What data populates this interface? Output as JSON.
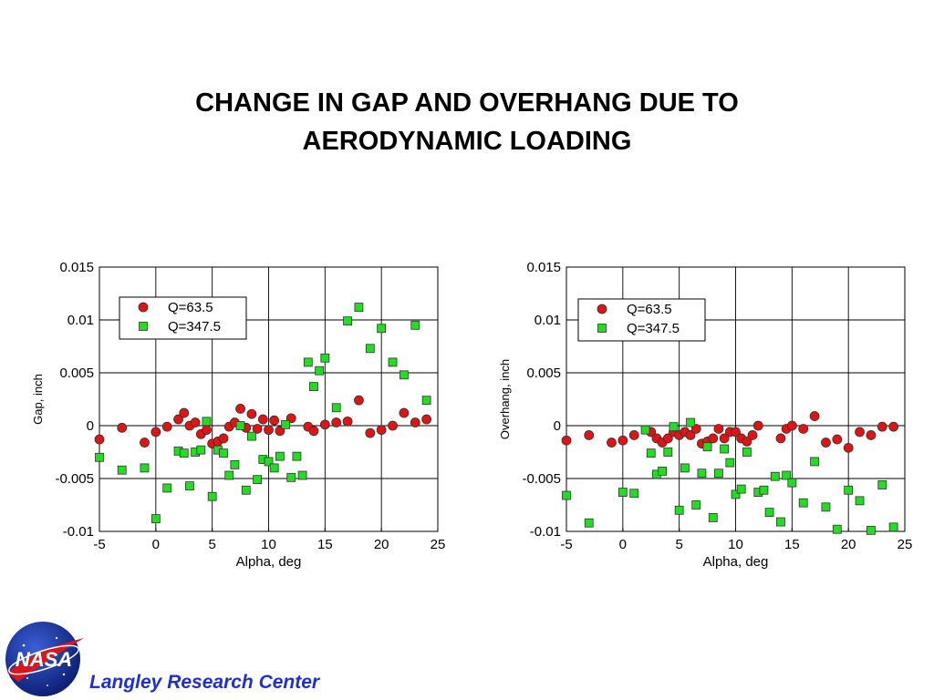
{
  "title": {
    "line1": "CHANGE IN GAP AND OVERHANG DUE TO",
    "line2": "AERODYNAMIC LOADING"
  },
  "footer": {
    "org": "Langley Research Center",
    "logo_text": "NASA"
  },
  "colors": {
    "series1": "#e01414",
    "series2": "#22dd22",
    "title": "#000000",
    "footer_text": "#1e2fd3"
  },
  "chart_data": [
    {
      "type": "scatter",
      "title": "",
      "xlabel": "Alpha, deg",
      "ylabel": "Gap, inch",
      "xlim": [
        -5,
        25
      ],
      "ylim": [
        -0.01,
        0.015
      ],
      "xticks": [
        "-5",
        "0",
        "5",
        "10",
        "15",
        "20",
        "25"
      ],
      "yticks": [
        "0.015",
        "0.01",
        "0.005",
        "0",
        "-0.005",
        "-0.01"
      ],
      "grid": true,
      "legend_position": "top-left",
      "series": [
        {
          "name": "Q=63.5",
          "marker": "circle",
          "x": [
            -5,
            -3,
            -1,
            0,
            1,
            2,
            2.5,
            3,
            3.5,
            4,
            4.5,
            5,
            5.5,
            6,
            6.5,
            7,
            7.5,
            8,
            8.5,
            9,
            9.5,
            10,
            10.5,
            11,
            12,
            13.5,
            14,
            15,
            16,
            17,
            18,
            19,
            20,
            21,
            22,
            23,
            24
          ],
          "y": [
            -0.0013,
            -0.0002,
            -0.0016,
            -0.0006,
            -0.0001,
            0.0006,
            0.0012,
            0.0,
            0.0003,
            -0.0008,
            -0.0004,
            -0.0017,
            -0.0015,
            -0.0012,
            -0.0001,
            0.0003,
            0.0016,
            -0.0002,
            0.0011,
            -0.0003,
            0.0006,
            -0.0004,
            0.0005,
            -0.0005,
            0.0007,
            -0.0001,
            -0.0005,
            0.0001,
            0.0003,
            0.0004,
            0.0024,
            -0.0007,
            -0.0004,
            0.0,
            0.0012,
            0.0003,
            0.0006
          ]
        },
        {
          "name": "Q=347.5",
          "marker": "square",
          "x": [
            -5,
            -3,
            -1,
            0,
            1,
            2,
            2.5,
            3,
            3.5,
            4,
            4.5,
            5,
            5.5,
            6,
            6.5,
            7,
            7.5,
            8,
            8.5,
            9,
            9.5,
            10,
            10.5,
            11,
            11.5,
            12,
            12.5,
            13,
            13.5,
            14,
            14.5,
            15,
            16,
            17,
            18,
            19,
            20,
            21,
            22,
            23,
            24
          ],
          "y": [
            -0.003,
            -0.0042,
            -0.004,
            -0.0088,
            -0.0059,
            -0.0024,
            -0.0026,
            -0.0057,
            -0.0025,
            -0.0023,
            0.0004,
            -0.0067,
            -0.0023,
            -0.0026,
            -0.0047,
            -0.0037,
            0.0,
            -0.0061,
            -0.001,
            -0.0051,
            -0.0032,
            -0.0034,
            -0.004,
            -0.0029,
            0.0001,
            -0.0049,
            -0.0029,
            -0.0047,
            0.006,
            0.0037,
            0.0052,
            0.0064,
            0.0017,
            0.0099,
            0.0112,
            0.0073,
            0.0092,
            0.006,
            0.0048,
            0.0095,
            0.0024
          ]
        }
      ]
    },
    {
      "type": "scatter",
      "title": "",
      "xlabel": "Alpha, deg",
      "ylabel": "Overhang, inch",
      "xlim": [
        -5,
        25
      ],
      "ylim": [
        -0.01,
        0.015
      ],
      "xticks": [
        "-5",
        "0",
        "5",
        "10",
        "15",
        "20",
        "25"
      ],
      "yticks": [
        "0.015",
        "0.01",
        "0.005",
        "0",
        "-0.005",
        "-0.01"
      ],
      "grid": true,
      "legend_position": "top-left",
      "series": [
        {
          "name": "Q=63.5",
          "marker": "circle",
          "x": [
            -5,
            -3,
            -1,
            0,
            1,
            2.5,
            3,
            3.5,
            4,
            4.5,
            5,
            5.5,
            6,
            6.5,
            7,
            7.5,
            8,
            8.5,
            9,
            9.5,
            10,
            10.5,
            11,
            11.5,
            12,
            14,
            14.5,
            15,
            16,
            17,
            18,
            19,
            20,
            21,
            22,
            23,
            24
          ],
          "y": [
            -0.0014,
            -0.0009,
            -0.0016,
            -0.0014,
            -0.0009,
            -0.0006,
            -0.0012,
            -0.0016,
            -0.0012,
            -0.0006,
            -0.0009,
            -0.0006,
            -0.0009,
            -0.0003,
            -0.0017,
            -0.0015,
            -0.0012,
            -0.0003,
            -0.0012,
            -0.0006,
            -0.0006,
            -0.0012,
            -0.0015,
            -0.0009,
            0.0,
            -0.0012,
            -0.0003,
            0.0,
            -0.0003,
            0.0009,
            -0.0016,
            -0.0013,
            -0.0021,
            -0.0006,
            -0.0009,
            -0.0001,
            -0.0001
          ]
        },
        {
          "name": "Q=347.5",
          "marker": "square",
          "x": [
            -5,
            -3,
            0,
            1,
            2,
            2.5,
            3,
            3.5,
            4,
            4.5,
            5,
            5.5,
            6,
            6.5,
            7,
            7.5,
            8,
            8.5,
            9,
            9.5,
            10,
            10.5,
            11,
            12,
            12.5,
            13,
            13.5,
            14,
            14.5,
            15,
            16,
            17,
            18,
            19,
            20,
            21,
            22,
            23,
            24
          ],
          "y": [
            -0.0066,
            -0.0092,
            -0.0063,
            -0.0064,
            -0.0004,
            -0.0026,
            -0.0046,
            -0.0043,
            -0.0025,
            -0.0001,
            -0.008,
            -0.004,
            0.0003,
            -0.0075,
            -0.0045,
            -0.002,
            -0.0087,
            -0.0045,
            -0.0022,
            -0.0035,
            -0.0065,
            -0.006,
            -0.0025,
            -0.0063,
            -0.0061,
            -0.0082,
            -0.0048,
            -0.0091,
            -0.0047,
            -0.0054,
            -0.0073,
            -0.0034,
            -0.0077,
            -0.0098,
            -0.0061,
            -0.0071,
            -0.0099,
            -0.0056,
            -0.0096
          ]
        }
      ]
    }
  ]
}
